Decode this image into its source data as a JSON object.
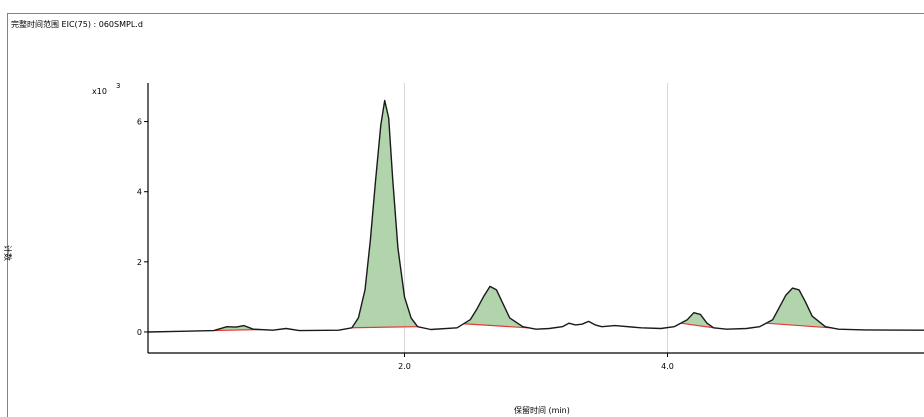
{
  "chart_data": {
    "type": "line",
    "title": "完整时间范围 EIC(75) : 060SMPL.d",
    "xlabel": "保留时间 (min)",
    "ylabel": "计数",
    "y_scale_multiplier": "x10",
    "y_scale_exponent": "3",
    "xlim": [
      0.05,
      5.95
    ],
    "ylim": [
      -0.6,
      7.1
    ],
    "x_ticks": [
      2.0,
      4.0
    ],
    "x_tick_labels": [
      "2.0",
      "4.0"
    ],
    "y_ticks": [
      0,
      2,
      4,
      6
    ],
    "y_tick_labels": [
      "0",
      "2",
      "4",
      "6"
    ],
    "grid": "vertical lines at x ticks",
    "series": [
      {
        "color": "#1a1a1a",
        "x": [
          0.05,
          0.3,
          0.55,
          0.65,
          0.72,
          0.78,
          0.85,
          1.0,
          1.1,
          1.2,
          1.5,
          1.6,
          1.65,
          1.7,
          1.74,
          1.78,
          1.82,
          1.85,
          1.88,
          1.91,
          1.95,
          2.0,
          2.05,
          2.1,
          2.2,
          2.4,
          2.5,
          2.55,
          2.6,
          2.65,
          2.7,
          2.75,
          2.8,
          2.9,
          3.0,
          3.1,
          3.2,
          3.25,
          3.3,
          3.35,
          3.4,
          3.45,
          3.5,
          3.6,
          3.8,
          3.95,
          4.05,
          4.15,
          4.2,
          4.25,
          4.3,
          4.35,
          4.45,
          4.6,
          4.7,
          4.8,
          4.85,
          4.9,
          4.95,
          5.0,
          5.05,
          5.1,
          5.2,
          5.3,
          5.5,
          5.95
        ],
        "y": [
          0.0,
          0.02,
          0.04,
          0.15,
          0.14,
          0.18,
          0.08,
          0.05,
          0.1,
          0.04,
          0.05,
          0.12,
          0.4,
          1.2,
          2.6,
          4.3,
          5.9,
          6.6,
          6.1,
          4.4,
          2.4,
          1.0,
          0.4,
          0.15,
          0.07,
          0.12,
          0.35,
          0.65,
          1.0,
          1.3,
          1.2,
          0.8,
          0.4,
          0.15,
          0.08,
          0.1,
          0.15,
          0.25,
          0.2,
          0.22,
          0.3,
          0.2,
          0.15,
          0.18,
          0.12,
          0.1,
          0.15,
          0.35,
          0.55,
          0.5,
          0.25,
          0.12,
          0.08,
          0.1,
          0.15,
          0.35,
          0.7,
          1.05,
          1.25,
          1.2,
          0.85,
          0.45,
          0.15,
          0.08,
          0.06,
          0.05
        ]
      }
    ],
    "integrated_peaks": [
      {
        "x_start": 0.55,
        "x_end": 0.9,
        "fill": "#a9cfa4",
        "baseline": "#e53935"
      },
      {
        "x_start": 1.6,
        "x_end": 2.1,
        "fill": "#a9cfa4",
        "baseline": "#e53935"
      },
      {
        "x_start": 2.45,
        "x_end": 2.95,
        "fill": "#a9cfa4",
        "baseline": "#e53935"
      },
      {
        "x_start": 4.1,
        "x_end": 4.35,
        "fill": "#a9cfa4",
        "baseline": "#e53935"
      },
      {
        "x_start": 4.75,
        "x_end": 5.25,
        "fill": "#a9cfa4",
        "baseline": "#e53935"
      }
    ]
  }
}
